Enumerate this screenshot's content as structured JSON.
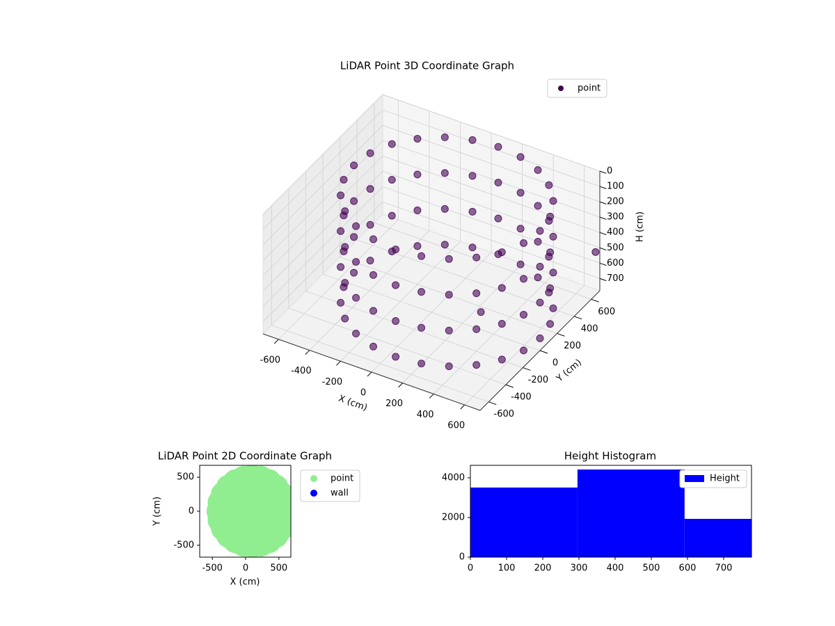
{
  "chart_data": [
    {
      "type": "scatter3d",
      "title": "LiDAR Point 3D Coordinate Graph",
      "xlabel": "X (cm)",
      "ylabel": "Y (cm)",
      "zlabel": "H (cm)",
      "xlim": [
        -700,
        700
      ],
      "ylim": [
        -700,
        700
      ],
      "zlim": [
        0,
        780
      ],
      "zinverted": true,
      "xticks": [
        -600,
        -400,
        -200,
        0,
        200,
        400,
        600
      ],
      "yticks": [
        -600,
        -400,
        -200,
        0,
        200,
        400,
        600
      ],
      "zticks": [
        0,
        100,
        200,
        300,
        400,
        500,
        600,
        700
      ],
      "series": [
        {
          "name": "point",
          "color": "#440154",
          "x": [
            700,
            680,
            620,
            524,
            400,
            255,
            100,
            -55,
            -200,
            -324,
            -420,
            -480,
            -500,
            -480,
            -420,
            -324,
            -200,
            -55,
            100,
            255,
            400,
            524,
            620,
            680,
            700,
            680,
            620,
            524,
            400,
            255,
            100,
            -55,
            -200,
            -324,
            -420,
            -480,
            -500,
            -480,
            -420,
            -324,
            -200,
            -55,
            100,
            255,
            400,
            524,
            620,
            680,
            700,
            680,
            620,
            524,
            400,
            255,
            100,
            -55,
            -200,
            -324,
            -420,
            -480,
            -500,
            -480,
            -420,
            -324,
            -200,
            -55,
            100,
            255,
            400,
            524,
            620,
            680,
            700,
            680,
            620,
            524,
            400,
            255,
            100,
            -55,
            -200,
            -324,
            -420,
            -480,
            -500,
            -480,
            -420,
            -324,
            -200,
            -55,
            100,
            255,
            400,
            524,
            620,
            680,
            700,
            242
          ],
          "y": [
            0,
            155,
            300,
            424,
            520,
            580,
            600,
            580,
            520,
            424,
            300,
            155,
            0,
            -155,
            -300,
            -424,
            -520,
            -580,
            -600,
            -580,
            -520,
            -424,
            -300,
            -155,
            0,
            155,
            300,
            424,
            520,
            580,
            600,
            580,
            520,
            424,
            300,
            155,
            0,
            -155,
            -300,
            -424,
            -520,
            -580,
            -600,
            -580,
            -520,
            -424,
            -300,
            -155,
            0,
            155,
            300,
            424,
            520,
            580,
            600,
            580,
            520,
            424,
            300,
            155,
            0,
            -155,
            -300,
            -424,
            -520,
            -580,
            -600,
            -580,
            -520,
            -424,
            -300,
            -155,
            0,
            155,
            300,
            424,
            520,
            580,
            600,
            580,
            520,
            424,
            300,
            155,
            0,
            -155,
            -300,
            -424,
            -520,
            -580,
            -600,
            -580,
            -520,
            -424,
            -300,
            -155,
            650,
            140
          ],
          "z": [
            0,
            0,
            0,
            0,
            0,
            0,
            0,
            0,
            0,
            0,
            0,
            0,
            0,
            0,
            0,
            0,
            0,
            0,
            0,
            0,
            0,
            0,
            0,
            0,
            233,
            233,
            233,
            233,
            233,
            233,
            233,
            233,
            233,
            233,
            233,
            233,
            233,
            233,
            233,
            233,
            233,
            233,
            233,
            233,
            233,
            233,
            233,
            233,
            467,
            467,
            467,
            467,
            467,
            467,
            467,
            467,
            467,
            467,
            467,
            467,
            467,
            467,
            467,
            467,
            467,
            467,
            467,
            467,
            467,
            467,
            467,
            467,
            700,
            700,
            700,
            700,
            700,
            700,
            700,
            700,
            700,
            700,
            700,
            700,
            700,
            700,
            700,
            700,
            700,
            700,
            700,
            700,
            700,
            700,
            700,
            700,
            500,
            770
          ]
        }
      ]
    },
    {
      "type": "scatter",
      "title": "LiDAR Point 2D Coordinate Graph",
      "xlabel": "X (cm)",
      "ylabel": "Y (cm)",
      "xlim": [
        -690,
        680
      ],
      "ylim": [
        -675,
        675
      ],
      "xticks": [
        -500,
        0,
        500
      ],
      "yticks": [
        -500,
        0,
        500
      ],
      "series": [
        {
          "name": "point",
          "color": "#90ee90",
          "x": [
            600,
            583,
            533,
            454,
            350,
            229,
            100,
            -29,
            -150,
            -254,
            -333,
            -383,
            -400,
            -383,
            -333,
            -254,
            -150,
            -29,
            100,
            229,
            350,
            454,
            533,
            583,
            350,
            317,
            225,
            100,
            -25,
            -117,
            -150,
            -117,
            -25,
            100,
            225,
            317,
            100
          ],
          "y": [
            0,
            129,
            250,
            354,
            433,
            483,
            500,
            483,
            433,
            354,
            250,
            129,
            0,
            -129,
            -250,
            -354,
            -433,
            -483,
            -500,
            -483,
            -433,
            -354,
            -250,
            -129,
            0,
            125,
            217,
            250,
            217,
            125,
            0,
            -125,
            -217,
            -250,
            -217,
            -125,
            0
          ]
        },
        {
          "name": "wall",
          "color": "#0000ff",
          "x": [
            100,
            200
          ],
          "y": [
            0,
            50
          ]
        }
      ]
    },
    {
      "type": "histogram",
      "title": "Height Histogram",
      "bins": [
        0,
        296,
        592,
        777
      ],
      "xlim": [
        0,
        777
      ],
      "ylim": [
        0,
        4630
      ],
      "xticks": [
        0,
        100,
        200,
        300,
        400,
        500,
        600,
        700
      ],
      "yticks": [
        0,
        2000,
        4000
      ],
      "series": [
        {
          "name": "Height",
          "color": "#0000ff",
          "values": [
            3510,
            4420,
            1930
          ]
        }
      ]
    }
  ]
}
